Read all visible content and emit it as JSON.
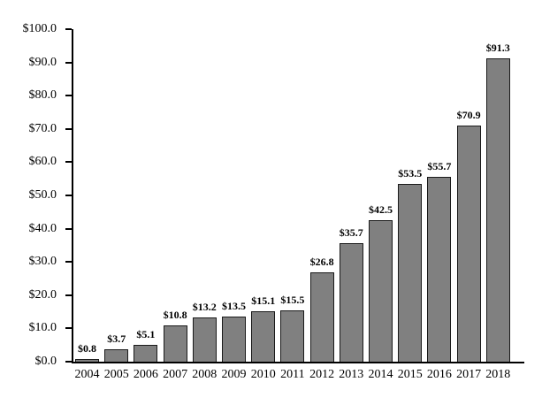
{
  "chart_data": {
    "type": "bar",
    "title": "",
    "xlabel": "",
    "ylabel": "",
    "categories": [
      "2004",
      "2005",
      "2006",
      "2007",
      "2008",
      "2009",
      "2010",
      "2011",
      "2012",
      "2013",
      "2014",
      "2015",
      "2016",
      "2017",
      "2018"
    ],
    "values": [
      0.8,
      3.7,
      5.1,
      10.8,
      13.2,
      13.5,
      15.1,
      15.5,
      26.8,
      35.7,
      42.5,
      53.5,
      55.7,
      70.9,
      91.3
    ],
    "value_labels": [
      "$0.8",
      "$3.7",
      "$5.1",
      "$10.8",
      "$13.2",
      "$13.5",
      "$15.1",
      "$15.5",
      "$26.8",
      "$35.7",
      "$42.5",
      "$53.5",
      "$55.7",
      "$70.9",
      "$91.3"
    ],
    "ylim": [
      0,
      100
    ],
    "y_tick_values": [
      0,
      10,
      20,
      30,
      40,
      50,
      60,
      70,
      80,
      90,
      100
    ],
    "y_tick_labels": [
      "$0.0",
      "$10.0",
      "$20.0",
      "$30.0",
      "$40.0",
      "$50.0",
      "$60.0",
      "$70.0",
      "$80.0",
      "$90.0",
      "$100.0"
    ],
    "grid": false,
    "legend": false,
    "colors": {
      "bar_fill": "#808080",
      "bar_border": "#1a1a1a",
      "axis": "#000000",
      "text": "#000000",
      "background": "#ffffff"
    }
  }
}
